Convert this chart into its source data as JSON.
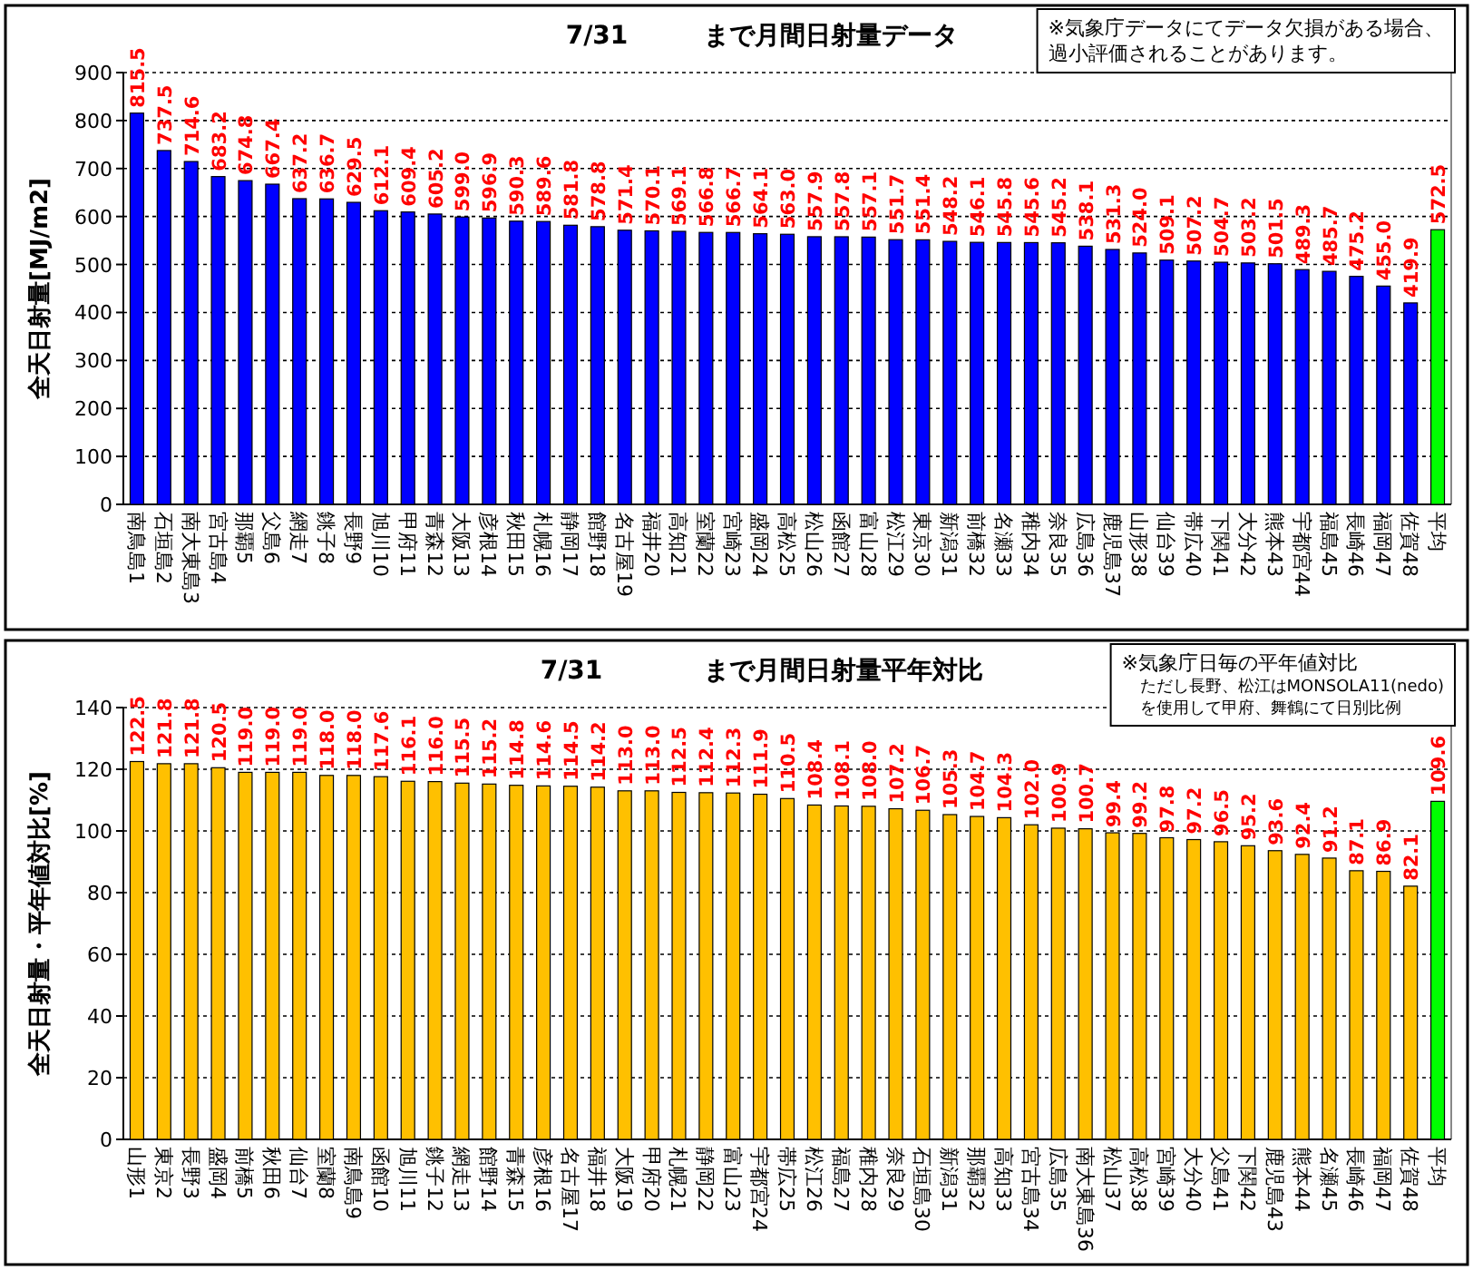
{
  "chart_data": [
    {
      "type": "bar",
      "title": "7/31　　　まで月間日射量データ",
      "ylabel": "全天日射量[MJ/m2]",
      "categories": [
        "南鳥島1",
        "石垣島2",
        "南大東島3",
        "宮古島4",
        "那覇5",
        "父島6",
        "網走7",
        "銚子8",
        "長野9",
        "旭川10",
        "甲府11",
        "青森12",
        "大阪13",
        "彦根14",
        "秋田15",
        "札幌16",
        "静岡17",
        "館野18",
        "名古屋19",
        "福井20",
        "高知21",
        "室蘭22",
        "宮崎23",
        "盛岡24",
        "高松25",
        "松山26",
        "函館27",
        "富山28",
        "松江29",
        "東京30",
        "新潟31",
        "前橋32",
        "名瀬33",
        "稚内34",
        "奈良35",
        "広島36",
        "鹿児島37",
        "山形38",
        "仙台39",
        "帯広40",
        "下関41",
        "大分42",
        "熊本43",
        "宇都宮44",
        "福島45",
        "長崎46",
        "福岡47",
        "佐賀48",
        "平均"
      ],
      "values": [
        815.5,
        737.5,
        714.6,
        683.2,
        674.8,
        667.4,
        637.2,
        636.7,
        629.5,
        612.1,
        609.4,
        605.2,
        599.0,
        596.9,
        590.3,
        589.6,
        581.8,
        578.8,
        571.4,
        570.1,
        569.1,
        566.8,
        566.7,
        564.1,
        563.0,
        557.9,
        557.8,
        557.1,
        551.7,
        551.4,
        548.2,
        546.1,
        545.8,
        545.6,
        545.2,
        538.1,
        531.3,
        524.0,
        509.1,
        507.2,
        504.7,
        503.2,
        501.5,
        489.3,
        485.7,
        475.2,
        455.0,
        419.9,
        572.5
      ],
      "value_labels": [
        "815.5",
        "737.5",
        "714.6",
        "683.2",
        "674.8",
        "667.4",
        "637.2",
        "636.7",
        "629.5",
        "612.1",
        "609.4",
        "605.2",
        "599.0",
        "596.9",
        "590.3",
        "589.6",
        "581.8",
        "578.8",
        "571.4",
        "570.1",
        "569.1",
        "566.8",
        "566.7",
        "564.1",
        "563.0",
        "557.9",
        "557.8",
        "557.1",
        "551.7",
        "551.4",
        "548.2",
        "546.1",
        "545.8",
        "545.6",
        "545.2",
        "538.1",
        "531.3",
        "524.0",
        "509.1",
        "507.2",
        "504.7",
        "503.2",
        "501.5",
        "489.3",
        "485.7",
        "475.2",
        "455.0",
        "419.9",
        "572.5"
      ],
      "colors": [
        "#0000ff",
        "#0000ff",
        "#0000ff",
        "#0000ff",
        "#0000ff",
        "#0000ff",
        "#0000ff",
        "#0000ff",
        "#0000ff",
        "#0000ff",
        "#0000ff",
        "#0000ff",
        "#0000ff",
        "#0000ff",
        "#0000ff",
        "#0000ff",
        "#0000ff",
        "#0000ff",
        "#0000ff",
        "#0000ff",
        "#0000ff",
        "#0000ff",
        "#0000ff",
        "#0000ff",
        "#0000ff",
        "#0000ff",
        "#0000ff",
        "#0000ff",
        "#0000ff",
        "#0000ff",
        "#0000ff",
        "#0000ff",
        "#0000ff",
        "#0000ff",
        "#0000ff",
        "#0000ff",
        "#0000ff",
        "#0000ff",
        "#0000ff",
        "#0000ff",
        "#0000ff",
        "#0000ff",
        "#0000ff",
        "#0000ff",
        "#0000ff",
        "#0000ff",
        "#0000ff",
        "#0000ff",
        "#00ff00"
      ],
      "ylim": [
        0,
        900
      ],
      "yticks": [
        0,
        100,
        200,
        300,
        400,
        500,
        600,
        700,
        800,
        900
      ],
      "grid": "y",
      "annotations": [
        "※気象庁データにてデータ欠損がある場合、",
        "過小評価されることがあります。"
      ]
    },
    {
      "type": "bar",
      "title": "7/31　　　　まで月間日射量平年対比",
      "ylabel": "全天日射量・平年値対比[%]",
      "categories": [
        "山形1",
        "東京2",
        "長野3",
        "盛岡4",
        "前橋5",
        "秋田6",
        "仙台7",
        "室蘭8",
        "南鳥島9",
        "函館10",
        "旭川11",
        "銚子12",
        "網走13",
        "館野14",
        "青森15",
        "彦根16",
        "名古屋17",
        "福井18",
        "大阪19",
        "甲府20",
        "札幌21",
        "静岡22",
        "富山23",
        "宇都宮24",
        "帯広25",
        "松江26",
        "福島27",
        "稚内28",
        "奈良29",
        "石垣島30",
        "新潟31",
        "那覇32",
        "高知33",
        "宮古島34",
        "広島35",
        "南大東島36",
        "松山37",
        "高松38",
        "宮崎39",
        "大分40",
        "父島41",
        "下関42",
        "鹿児島43",
        "熊本44",
        "名瀬45",
        "長崎46",
        "福岡47",
        "佐賀48",
        "平均"
      ],
      "values": [
        122.5,
        121.8,
        121.8,
        120.5,
        119.0,
        119.0,
        119.0,
        118.0,
        118.0,
        117.6,
        116.1,
        116.0,
        115.5,
        115.2,
        114.8,
        114.6,
        114.5,
        114.2,
        113.0,
        113.0,
        112.5,
        112.4,
        112.3,
        111.9,
        110.5,
        108.4,
        108.1,
        108.0,
        107.2,
        106.7,
        105.3,
        104.7,
        104.3,
        102.0,
        100.9,
        100.7,
        99.4,
        99.2,
        97.8,
        97.2,
        96.5,
        95.2,
        93.6,
        92.4,
        91.2,
        87.1,
        86.9,
        82.1,
        109.6
      ],
      "value_labels": [
        "122.5",
        "121.8",
        "121.8",
        "120.5",
        "119.0",
        "119.0",
        "119.0",
        "118.0",
        "118.0",
        "117.6",
        "116.1",
        "116.0",
        "115.5",
        "115.2",
        "114.8",
        "114.6",
        "114.5",
        "114.2",
        "113.0",
        "113.0",
        "112.5",
        "112.4",
        "112.3",
        "111.9",
        "110.5",
        "108.4",
        "108.1",
        "108.0",
        "107.2",
        "106.7",
        "105.3",
        "104.7",
        "104.3",
        "102.0",
        "100.9",
        "100.7",
        "99.4",
        "99.2",
        "97.8",
        "97.2",
        "96.5",
        "95.2",
        "93.6",
        "92.4",
        "91.2",
        "87.1",
        "86.9",
        "82.1",
        "109.6"
      ],
      "colors": [
        "#ffc000",
        "#ffc000",
        "#ffc000",
        "#ffc000",
        "#ffc000",
        "#ffc000",
        "#ffc000",
        "#ffc000",
        "#ffc000",
        "#ffc000",
        "#ffc000",
        "#ffc000",
        "#ffc000",
        "#ffc000",
        "#ffc000",
        "#ffc000",
        "#ffc000",
        "#ffc000",
        "#ffc000",
        "#ffc000",
        "#ffc000",
        "#ffc000",
        "#ffc000",
        "#ffc000",
        "#ffc000",
        "#ffc000",
        "#ffc000",
        "#ffc000",
        "#ffc000",
        "#ffc000",
        "#ffc000",
        "#ffc000",
        "#ffc000",
        "#ffc000",
        "#ffc000",
        "#ffc000",
        "#ffc000",
        "#ffc000",
        "#ffc000",
        "#ffc000",
        "#ffc000",
        "#ffc000",
        "#ffc000",
        "#ffc000",
        "#ffc000",
        "#ffc000",
        "#ffc000",
        "#ffc000",
        "#00ff00"
      ],
      "ylim": [
        0,
        140
      ],
      "yticks": [
        0,
        20,
        40,
        60,
        80,
        100,
        120,
        140
      ],
      "grid": "y",
      "annotations": [
        "※気象庁日毎の平年値対比",
        "ただし長野、松江はMONSOLA11(nedo)",
        "を使用して甲府、舞鶴にて日別比例"
      ]
    }
  ]
}
